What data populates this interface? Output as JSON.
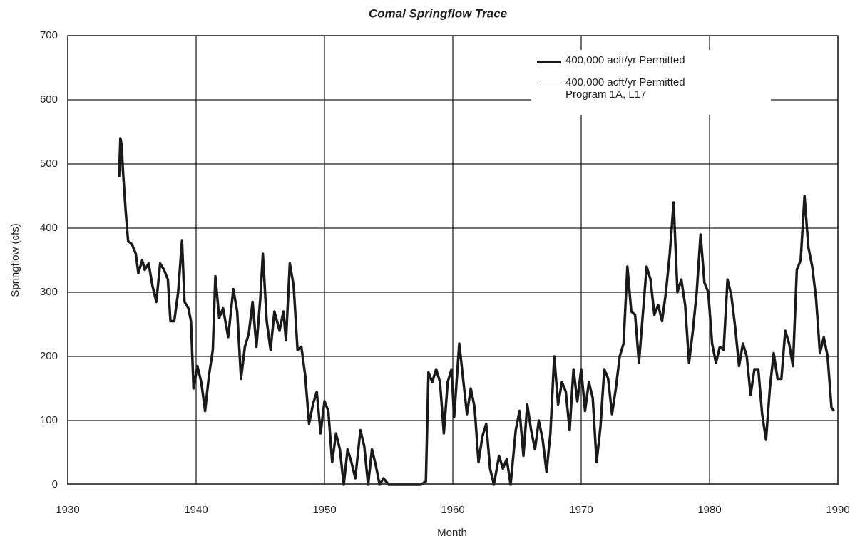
{
  "chart_data": {
    "type": "line",
    "title": "Comal Springflow Trace",
    "xlabel": "Month",
    "ylabel": "Springflow (cfs)",
    "xlim": [
      1930,
      1990
    ],
    "xticks": [
      1930,
      1940,
      1950,
      1960,
      1970,
      1980,
      1990
    ],
    "ylim": [
      0,
      700
    ],
    "yticks": [
      0,
      100,
      200,
      300,
      400,
      500,
      600,
      700
    ],
    "grid": true,
    "legend": "upper right",
    "series": [
      {
        "name": "400,000 acft/yr Permitted",
        "color": "#1a1a1a",
        "width": "thick",
        "x": [
          1934.0,
          1934.1,
          1934.2,
          1934.3,
          1934.5,
          1934.7,
          1935.0,
          1935.3,
          1935.5,
          1935.8,
          1936.0,
          1936.3,
          1936.6,
          1936.9,
          1937.2,
          1937.5,
          1937.8,
          1938.0,
          1938.3,
          1938.6,
          1938.9,
          1939.1,
          1939.4,
          1939.6,
          1939.8,
          1940.1,
          1940.4,
          1940.7,
          1941.0,
          1941.3,
          1941.5,
          1941.8,
          1942.1,
          1942.5,
          1942.9,
          1943.2,
          1943.5,
          1943.8,
          1944.1,
          1944.4,
          1944.7,
          1945.0,
          1945.2,
          1945.5,
          1945.8,
          1946.1,
          1946.5,
          1946.8,
          1947.0,
          1947.3,
          1947.6,
          1947.9,
          1948.2,
          1948.5,
          1948.8,
          1949.1,
          1949.4,
          1949.7,
          1950.0,
          1950.3,
          1950.6,
          1950.9,
          1951.2,
          1951.5,
          1951.8,
          1952.1,
          1952.4,
          1952.8,
          1953.1,
          1953.4,
          1953.7,
          1954.0,
          1954.3,
          1954.6,
          1955.0,
          1955.5,
          1956.5,
          1957.5,
          1957.9,
          1958.1,
          1958.4,
          1958.7,
          1959.0,
          1959.3,
          1959.6,
          1959.9,
          1960.1,
          1960.5,
          1960.8,
          1961.1,
          1961.4,
          1961.7,
          1962.0,
          1962.3,
          1962.6,
          1962.9,
          1963.2,
          1963.6,
          1963.9,
          1964.2,
          1964.5,
          1964.9,
          1965.2,
          1965.5,
          1965.8,
          1966.1,
          1966.4,
          1966.7,
          1967.0,
          1967.3,
          1967.6,
          1967.9,
          1968.2,
          1968.5,
          1968.8,
          1969.1,
          1969.4,
          1969.7,
          1970.0,
          1970.3,
          1970.6,
          1970.9,
          1971.2,
          1971.5,
          1971.8,
          1972.1,
          1972.4,
          1972.7,
          1973.0,
          1973.3,
          1973.6,
          1973.9,
          1974.2,
          1974.5,
          1974.8,
          1975.1,
          1975.4,
          1975.7,
          1976.0,
          1976.3,
          1976.6,
          1976.9,
          1977.2,
          1977.5,
          1977.8,
          1978.1,
          1978.4,
          1978.7,
          1979.0,
          1979.3,
          1979.6,
          1979.9,
          1980.2,
          1980.5,
          1980.8,
          1981.1,
          1981.4,
          1981.7,
          1982.0,
          1982.3,
          1982.6,
          1982.9,
          1983.2,
          1983.5,
          1983.8,
          1984.1,
          1984.4,
          1984.7,
          1985.0,
          1985.3,
          1985.6,
          1985.9,
          1986.2,
          1986.5,
          1986.8,
          1987.1,
          1987.4,
          1987.7,
          1988.0,
          1988.3,
          1988.6,
          1988.9,
          1989.2,
          1989.5,
          1989.7
        ],
        "values": [
          480,
          540,
          530,
          490,
          430,
          380,
          375,
          360,
          330,
          350,
          335,
          345,
          310,
          285,
          345,
          335,
          320,
          255,
          255,
          300,
          380,
          285,
          275,
          255,
          150,
          185,
          160,
          115,
          170,
          210,
          325,
          260,
          275,
          230,
          305,
          270,
          165,
          215,
          235,
          285,
          215,
          290,
          360,
          255,
          210,
          270,
          240,
          270,
          225,
          345,
          310,
          210,
          215,
          170,
          95,
          125,
          145,
          80,
          130,
          115,
          35,
          80,
          55,
          0,
          55,
          35,
          10,
          85,
          60,
          0,
          55,
          30,
          0,
          10,
          0,
          0,
          0,
          0,
          5,
          175,
          160,
          180,
          160,
          80,
          160,
          180,
          105,
          220,
          165,
          110,
          150,
          120,
          35,
          75,
          95,
          25,
          0,
          45,
          25,
          40,
          0,
          85,
          115,
          45,
          125,
          85,
          55,
          100,
          70,
          20,
          80,
          200,
          125,
          160,
          145,
          85,
          180,
          130,
          180,
          115,
          160,
          135,
          35,
          90,
          180,
          165,
          110,
          150,
          200,
          220,
          340,
          270,
          265,
          190,
          265,
          340,
          320,
          265,
          280,
          255,
          300,
          360,
          440,
          300,
          320,
          280,
          190,
          240,
          300,
          390,
          315,
          300,
          220,
          190,
          215,
          210,
          320,
          295,
          245,
          185,
          220,
          200,
          140,
          180,
          180,
          110,
          70,
          150,
          205,
          165,
          165,
          240,
          220,
          185,
          335,
          350,
          450,
          370,
          340,
          290,
          205,
          230,
          200,
          120,
          115
        ]
      },
      {
        "name": "400,000 acft/yr Permitted Program 1A, L17",
        "color": "#333333",
        "width": "thin",
        "x": [
          1930,
          1990
        ],
        "values": [
          2,
          2
        ]
      }
    ]
  }
}
